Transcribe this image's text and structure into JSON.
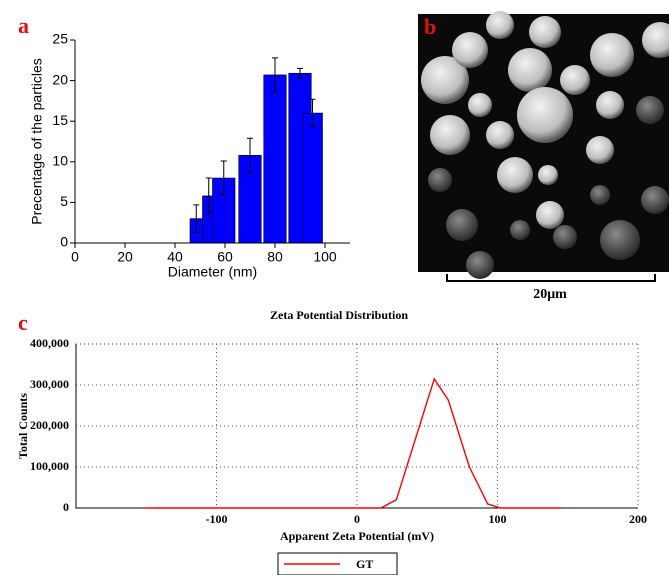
{
  "chart_data": [
    {
      "type": "bar",
      "panel_label": "a",
      "xlabel": "Diameter (nm)",
      "ylabel": "Precentage of the particles",
      "x": [
        48.5,
        53.5,
        59.5,
        70,
        80,
        90,
        95
      ],
      "widths": [
        5,
        5,
        9,
        9,
        9,
        9,
        8
      ],
      "values": [
        3,
        5.8,
        8,
        10.8,
        20.7,
        20.9,
        16
      ],
      "errors": [
        1.7,
        2.2,
        2.1,
        2.1,
        2.1,
        0.6,
        1.7
      ],
      "color": "#0000ff",
      "xlim": [
        0,
        110
      ],
      "xticks": [
        0,
        20,
        40,
        60,
        80,
        100
      ],
      "ylim": [
        0,
        25
      ],
      "yticks": [
        0,
        5,
        10,
        15,
        20,
        25
      ]
    },
    {
      "type": "line",
      "panel_label": "c",
      "title": "Zeta Potential Distribution",
      "xlabel": "Apparent Zeta Potential (mV)",
      "ylabel": "Total Counts",
      "series": [
        {
          "name": "GT",
          "color": "#ff0000",
          "x": [
            -150,
            17,
            28,
            55,
            65,
            80,
            93,
            102,
            145
          ],
          "values": [
            0,
            0,
            20000,
            315000,
            263000,
            100000,
            10000,
            0,
            0
          ]
        }
      ],
      "xlim": [
        -200,
        200
      ],
      "xticks": [
        -100,
        0,
        100,
        200
      ],
      "ylim": [
        0,
        400000
      ],
      "yticks": [
        0,
        {
          "value": 100000,
          "label": "100,000"
        },
        {
          "value": 200000,
          "label": "200,000"
        },
        {
          "value": 300000,
          "label": "300,000"
        },
        {
          "value": 400000,
          "label": "400,000"
        }
      ],
      "grid": true,
      "legend": "bottom"
    }
  ],
  "image": {
    "panel_label": "b",
    "scale_bar": "20μm"
  }
}
